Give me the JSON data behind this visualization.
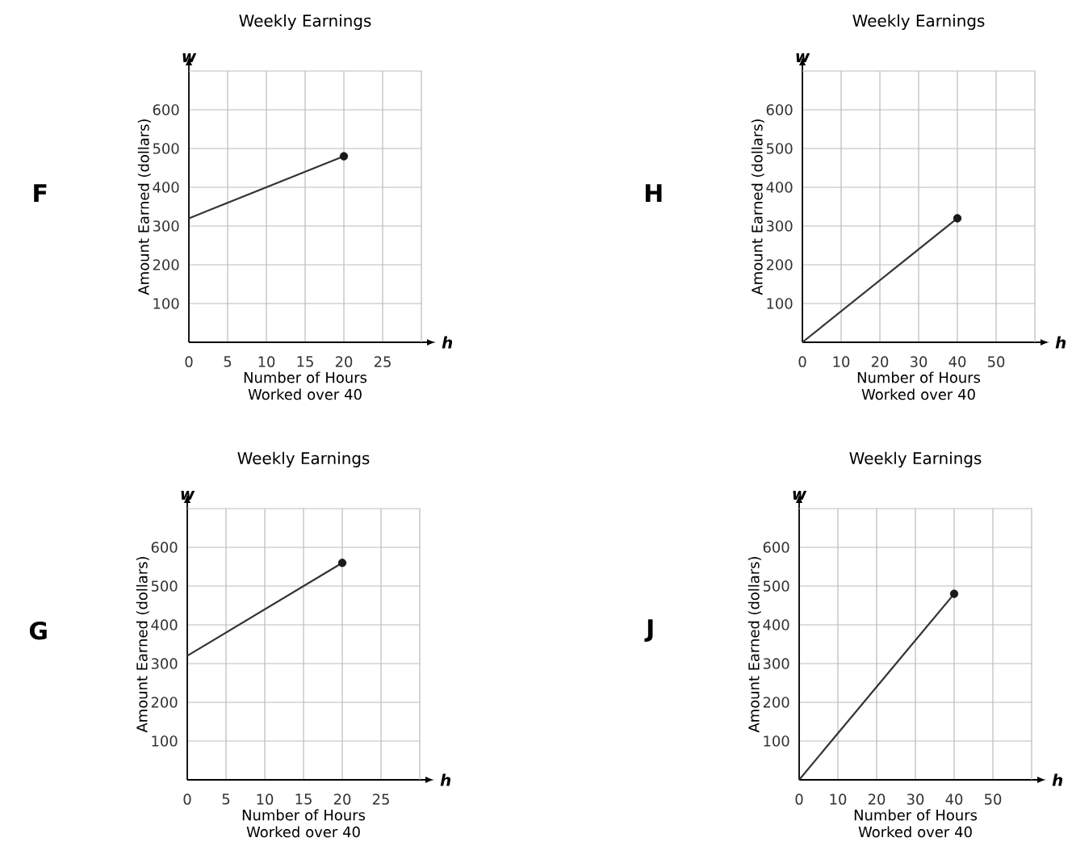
{
  "chart_data": [
    {
      "type": "line",
      "title": "Weekly Earnings",
      "xlabel": "Number of Hours Worked over 40",
      "ylabel": "Amount Earned (dollars)",
      "annotations": [
        "F",
        "w",
        "h"
      ],
      "xlim": [
        0,
        30
      ],
      "ylim": [
        0,
        700
      ],
      "xticks": [
        0,
        5,
        10,
        15,
        20,
        25
      ],
      "yticks": [
        100,
        200,
        300,
        400,
        500,
        600
      ],
      "grid": true,
      "line_style": "solid",
      "series": [
        {
          "x": [
            0,
            20
          ],
          "values": [
            320,
            480
          ],
          "color": "#333333"
        },
        {
          "type": "scatter",
          "x": [
            20
          ],
          "values": [
            480
          ],
          "color": "#1a1a1a"
        }
      ]
    },
    {
      "type": "line",
      "title": "Weekly Earnings",
      "xlabel": "Number of Hours Worked over 40",
      "ylabel": "Amount Earned (dollars)",
      "annotations": [
        "H",
        "w",
        "h"
      ],
      "xlim": [
        0,
        60
      ],
      "ylim": [
        0,
        700
      ],
      "xticks": [
        0,
        10,
        20,
        30,
        40,
        50
      ],
      "yticks": [
        100,
        200,
        300,
        400,
        500,
        600
      ],
      "grid": true,
      "line_style": "solid",
      "series": [
        {
          "x": [
            0,
            40
          ],
          "values": [
            0,
            320
          ],
          "color": "#333333"
        },
        {
          "type": "scatter",
          "x": [
            40
          ],
          "values": [
            320
          ],
          "color": "#1a1a1a"
        }
      ]
    },
    {
      "type": "line",
      "title": "Weekly Earnings",
      "xlabel": "Number of Hours Worked over 40",
      "ylabel": "Amount Earned (dollars)",
      "annotations": [
        "G",
        "w",
        "h"
      ],
      "xlim": [
        0,
        30
      ],
      "ylim": [
        0,
        700
      ],
      "xticks": [
        0,
        5,
        10,
        15,
        20,
        25
      ],
      "yticks": [
        100,
        200,
        300,
        400,
        500,
        600
      ],
      "grid": true,
      "line_style": "solid",
      "series": [
        {
          "x": [
            0,
            20
          ],
          "values": [
            320,
            560
          ],
          "color": "#333333"
        },
        {
          "type": "scatter",
          "x": [
            20
          ],
          "values": [
            560
          ],
          "color": "#1a1a1a"
        }
      ]
    },
    {
      "type": "line",
      "title": "Weekly Earnings",
      "xlabel": "Number of Hours Worked over 40",
      "ylabel": "Amount Earned (dollars)",
      "annotations": [
        "J",
        "w",
        "h"
      ],
      "xlim": [
        0,
        60
      ],
      "ylim": [
        0,
        700
      ],
      "xticks": [
        0,
        10,
        20,
        30,
        40,
        50
      ],
      "yticks": [
        100,
        200,
        300,
        400,
        500,
        600
      ],
      "grid": true,
      "line_style": "solid",
      "series": [
        {
          "x": [
            0,
            40
          ],
          "values": [
            0,
            480
          ],
          "color": "#333333"
        },
        {
          "type": "scatter",
          "x": [
            40
          ],
          "values": [
            480
          ],
          "color": "#1a1a1a"
        }
      ]
    }
  ]
}
